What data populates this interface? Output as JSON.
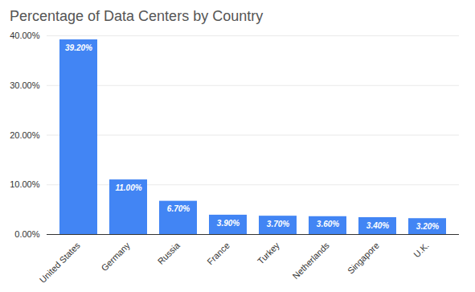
{
  "chart_data": {
    "type": "bar",
    "title": "Percentage of Data Centers by Country",
    "categories": [
      "United States",
      "Germany",
      "Russia",
      "France",
      "Turkey",
      "Netherlands",
      "Singapore",
      "U.K."
    ],
    "values": [
      39.2,
      11.0,
      6.7,
      3.9,
      3.7,
      3.6,
      3.4,
      3.2
    ],
    "value_labels": [
      "39.20%",
      "11.00%",
      "6.70%",
      "3.90%",
      "3.70%",
      "3.60%",
      "3.40%",
      "3.20%"
    ],
    "color": "#4285f4",
    "ylim": [
      0,
      40
    ],
    "yticks": [
      {
        "value": 0,
        "label": "0.00%"
      },
      {
        "value": 10,
        "label": "10.00%"
      },
      {
        "value": 20,
        "label": "20.00%"
      },
      {
        "value": 30,
        "label": "30.00%"
      },
      {
        "value": 40,
        "label": "40.00%"
      }
    ],
    "grid": true,
    "data_labels": true
  }
}
